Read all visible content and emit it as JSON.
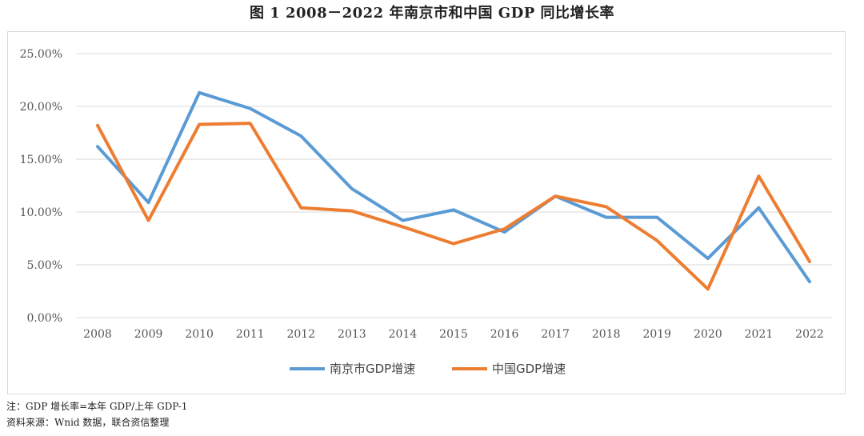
{
  "title": "图 1   2008－2022 年南京市和中国 GDP 同比增长率",
  "notes": [
    "注：GDP 增长率=本年 GDP/上年 GDP-1",
    "资料来源：Wnid 数据，联合资信整理"
  ],
  "chart_data": {
    "type": "line",
    "title": "图 1   2008－2022 年南京市和中国 GDP 同比增长率",
    "xlabel": "",
    "ylabel": "",
    "x": [
      "2008",
      "2009",
      "2010",
      "2011",
      "2012",
      "2013",
      "2014",
      "2015",
      "2016",
      "2017",
      "2018",
      "2019",
      "2020",
      "2021",
      "2022"
    ],
    "ylim": [
      0,
      0.25
    ],
    "yticks": [
      0,
      0.05,
      0.1,
      0.15,
      0.2,
      0.25
    ],
    "ytick_labels": [
      "0.00%",
      "5.00%",
      "10.00%",
      "15.00%",
      "20.00%",
      "25.00%"
    ],
    "grid": "horizontal",
    "legend": "bottom",
    "series": [
      {
        "name": "南京市GDP增速",
        "color": "#5b9bd5",
        "values": [
          0.162,
          0.109,
          0.213,
          0.198,
          0.172,
          0.122,
          0.092,
          0.102,
          0.081,
          0.115,
          0.095,
          0.095,
          0.056,
          0.104,
          0.034
        ]
      },
      {
        "name": "中国GDP增速",
        "color": "#ed7d31",
        "values": [
          0.182,
          0.092,
          0.183,
          0.184,
          0.104,
          0.101,
          0.086,
          0.07,
          0.084,
          0.115,
          0.105,
          0.073,
          0.027,
          0.134,
          0.053
        ]
      }
    ]
  }
}
